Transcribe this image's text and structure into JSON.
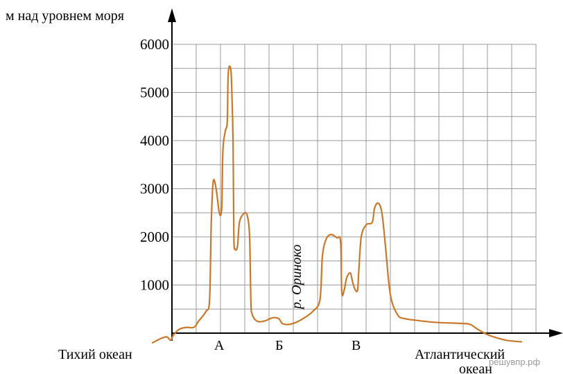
{
  "chart_data": {
    "type": "line",
    "ylabel": "м над уровнем моря",
    "yticks": [
      1000,
      2000,
      3000,
      4000,
      5000,
      6000
    ],
    "ylim": [
      0,
      6000
    ],
    "grid": true,
    "points": [
      {
        "label": "А"
      },
      {
        "label": "Б"
      },
      {
        "label": "В"
      }
    ],
    "left_end_label": "Тихий океан",
    "right_end_label": [
      "Атлантический",
      "океан"
    ],
    "annotation": "р. Ориноко",
    "series": [
      {
        "color": "#c8782a",
        "note": "x in grid columns (0 = vertical axis, 15 = right edge), y in metres",
        "points": [
          [
            -0.8,
            -200
          ],
          [
            -0.4,
            -100
          ],
          [
            -0.2,
            -80
          ],
          [
            -0.05,
            -150
          ],
          [
            0.05,
            -50
          ],
          [
            0.3,
            80
          ],
          [
            0.6,
            120
          ],
          [
            0.9,
            120
          ],
          [
            1.1,
            250
          ],
          [
            1.4,
            450
          ],
          [
            1.55,
            700
          ],
          [
            1.62,
            2300
          ],
          [
            1.7,
            3150
          ],
          [
            1.82,
            3000
          ],
          [
            1.95,
            2500
          ],
          [
            2.05,
            2600
          ],
          [
            2.1,
            3800
          ],
          [
            2.2,
            4200
          ],
          [
            2.28,
            4400
          ],
          [
            2.32,
            5400
          ],
          [
            2.42,
            5500
          ],
          [
            2.47,
            5000
          ],
          [
            2.52,
            3900
          ],
          [
            2.55,
            2000
          ],
          [
            2.6,
            1750
          ],
          [
            2.7,
            1800
          ],
          [
            2.78,
            2300
          ],
          [
            2.95,
            2480
          ],
          [
            3.1,
            2450
          ],
          [
            3.2,
            2000
          ],
          [
            3.25,
            700
          ],
          [
            3.3,
            400
          ],
          [
            3.5,
            250
          ],
          [
            3.8,
            250
          ],
          [
            4.15,
            320
          ],
          [
            4.4,
            300
          ],
          [
            4.55,
            200
          ],
          [
            4.8,
            180
          ],
          [
            5.1,
            220
          ],
          [
            5.4,
            300
          ],
          [
            5.8,
            450
          ],
          [
            6.1,
            700
          ],
          [
            6.2,
            1600
          ],
          [
            6.35,
            1950
          ],
          [
            6.55,
            2050
          ],
          [
            6.8,
            1980
          ],
          [
            6.95,
            1900
          ],
          [
            7.0,
            850
          ],
          [
            7.1,
            900
          ],
          [
            7.2,
            1150
          ],
          [
            7.35,
            1250
          ],
          [
            7.45,
            1050
          ],
          [
            7.55,
            900
          ],
          [
            7.65,
            900
          ],
          [
            7.7,
            1300
          ],
          [
            7.8,
            2000
          ],
          [
            8.0,
            2250
          ],
          [
            8.25,
            2300
          ],
          [
            8.35,
            2600
          ],
          [
            8.5,
            2700
          ],
          [
            8.65,
            2500
          ],
          [
            8.8,
            1800
          ],
          [
            9.0,
            800
          ],
          [
            9.3,
            380
          ],
          [
            9.6,
            300
          ],
          [
            10.0,
            270
          ],
          [
            10.5,
            240
          ],
          [
            11.0,
            220
          ],
          [
            11.5,
            210
          ],
          [
            12.0,
            200
          ],
          [
            12.3,
            180
          ],
          [
            12.6,
            80
          ],
          [
            13.0,
            -30
          ],
          [
            13.4,
            -100
          ],
          [
            13.8,
            -150
          ],
          [
            14.4,
            -180
          ]
        ]
      }
    ],
    "watermark": "решувпр.рф"
  }
}
